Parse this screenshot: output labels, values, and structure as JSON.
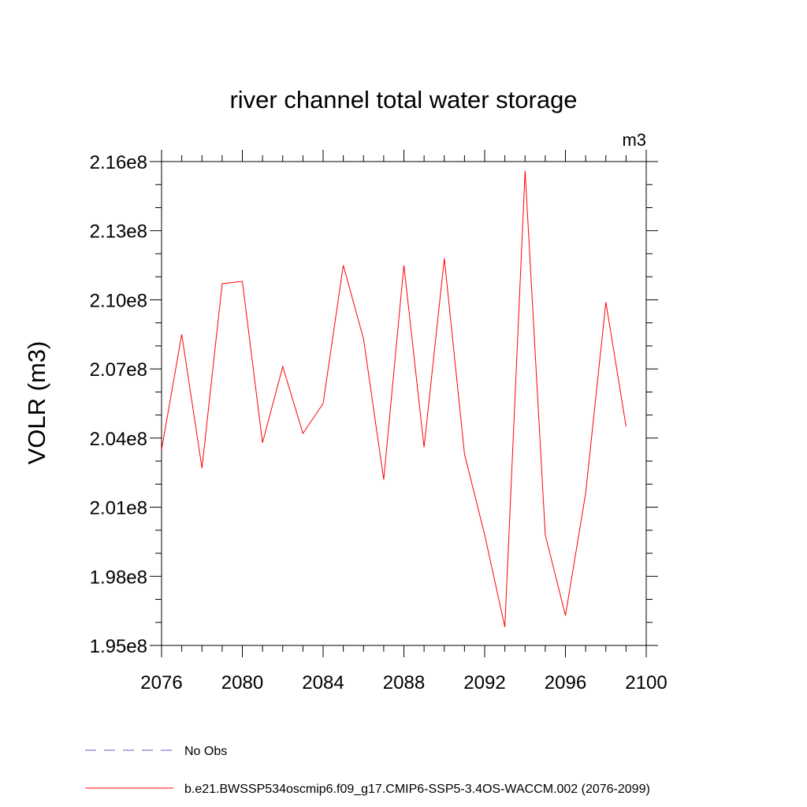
{
  "chart_data": {
    "type": "line",
    "title": "river channel total water storage",
    "units_label": "m3",
    "ylabel": "VOLR  (m3)",
    "xlabel": "",
    "xlim": [
      2076,
      2100
    ],
    "ylim": [
      195000000,
      216000000
    ],
    "x_ticks": [
      2076,
      2080,
      2084,
      2088,
      2092,
      2096,
      2100
    ],
    "x_tick_labels": [
      "2076",
      "2080",
      "2084",
      "2088",
      "2092",
      "2096",
      "2100"
    ],
    "y_ticks": [
      195000000,
      198000000,
      201000000,
      204000000,
      207000000,
      210000000,
      213000000,
      216000000
    ],
    "y_tick_labels": [
      "1.95e8",
      "1.98e8",
      "2.01e8",
      "2.04e8",
      "2.07e8",
      "2.10e8",
      "2.13e8",
      "2.16e8"
    ],
    "grid": false,
    "legend_position": "bottom",
    "series": [
      {
        "name": "No Obs",
        "color": "#6a5acd",
        "style": "dashed",
        "x": [],
        "y": []
      },
      {
        "name": "b.e21.BWSSP534oscmip6.f09_g17.CMIP6-SSP5-3.4OS-WACCM.002 (2076-2099)",
        "color": "#ff0000",
        "style": "solid",
        "x": [
          2076,
          2077,
          2078,
          2079,
          2080,
          2081,
          2082,
          2083,
          2084,
          2085,
          2086,
          2087,
          2088,
          2089,
          2090,
          2091,
          2092,
          2093,
          2094,
          2095,
          2096,
          2097,
          2098,
          2099
        ],
        "y": [
          203500000,
          208500000,
          202700000,
          210700000,
          210800000,
          203800000,
          207100000,
          204200000,
          205500000,
          211500000,
          208300000,
          202200000,
          211500000,
          203600000,
          211800000,
          203300000,
          199800000,
          195800000,
          215600000,
          199800000,
          196300000,
          201600000,
          209900000,
          204500000
        ]
      }
    ]
  }
}
